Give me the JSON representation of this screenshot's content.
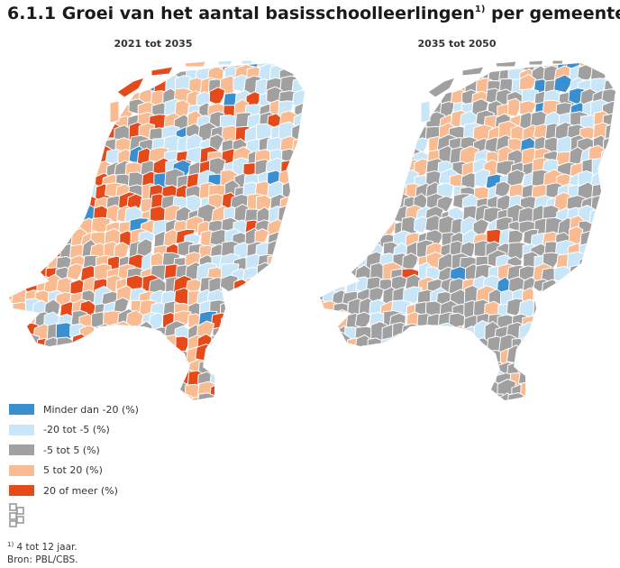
{
  "title": {
    "main": "6.1.1 Groei van het aantal basisschoolleerlingen",
    "superscript": "1)",
    "suffix": " per gemeente"
  },
  "maps": [
    {
      "label": "2021 tot 2035"
    },
    {
      "label": "2035 tot 2050"
    }
  ],
  "legend": [
    {
      "label": "Minder dan -20 (%)",
      "color": "#3a8fd0"
    },
    {
      "label": "-20 tot -5 (%)",
      "color": "#c8e6f7"
    },
    {
      "label": "-5 tot 5 (%)",
      "color": "#a0a0a0"
    },
    {
      "label": "5 tot 20 (%)",
      "color": "#f9bb92"
    },
    {
      "label": "20 of meer (%)",
      "color": "#e54a1a"
    }
  ],
  "logo": {
    "name": "cbs-logo",
    "text": "cbs"
  },
  "footnote": {
    "marker": "1)",
    "text": " 4 tot 12 jaar.",
    "source": "Bron: PBL/CBS."
  }
}
